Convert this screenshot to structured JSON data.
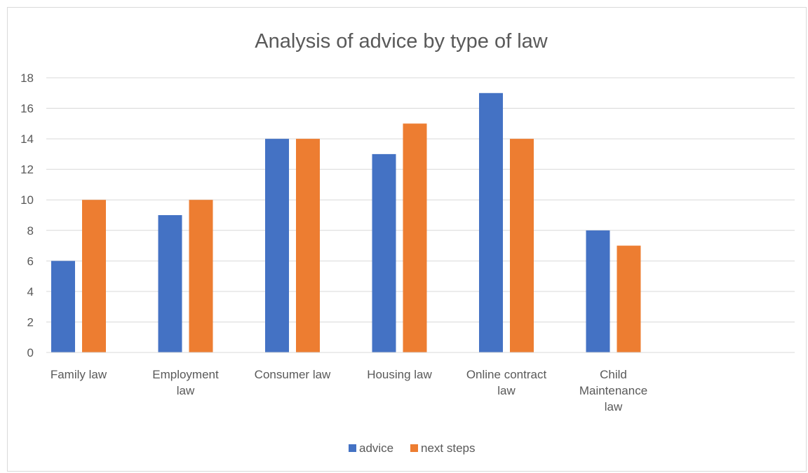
{
  "chart_data": {
    "type": "bar",
    "title": "Analysis of advice by type of law",
    "xlabel": "",
    "ylabel": "",
    "categories": [
      [
        "Family law"
      ],
      [
        "Employment",
        "law"
      ],
      [
        "Consumer law"
      ],
      [
        "Housing law"
      ],
      [
        "Online contract",
        "law"
      ],
      [
        "Child",
        "Maintenance",
        "law"
      ]
    ],
    "series": [
      {
        "name": "advice",
        "color": "#4472C4",
        "values": [
          6,
          9,
          14,
          13,
          17,
          8
        ]
      },
      {
        "name": "next steps",
        "color": "#ED7D31",
        "values": [
          10,
          10,
          14,
          15,
          14,
          7
        ]
      }
    ],
    "ylim": [
      0,
      18
    ],
    "yticks": [
      0,
      2,
      4,
      6,
      8,
      10,
      12,
      14,
      16,
      18
    ],
    "grid": true,
    "legend": "bottom-center"
  }
}
